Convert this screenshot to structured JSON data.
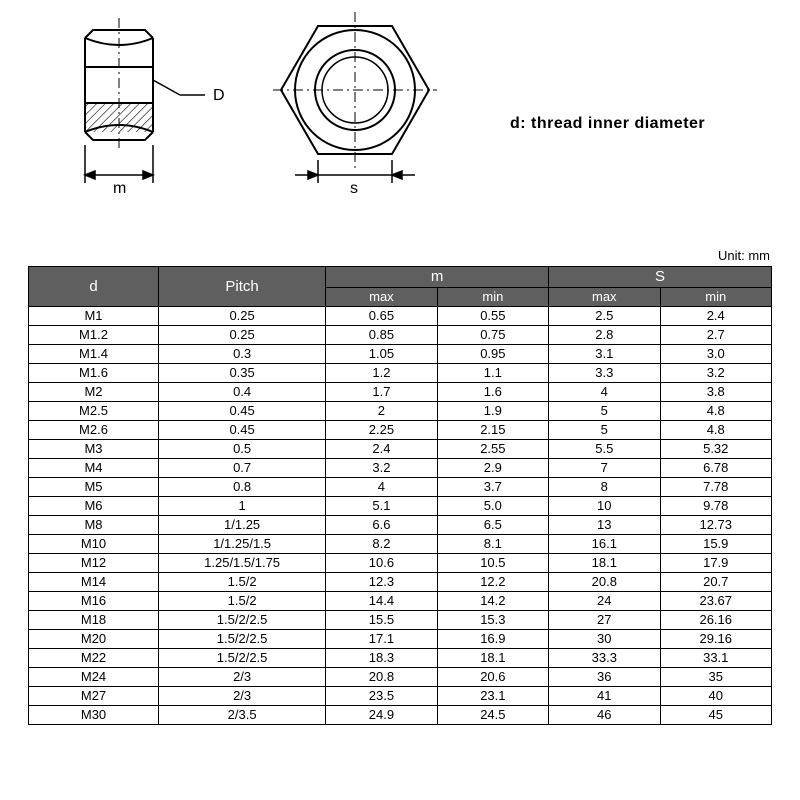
{
  "annotation": "d: thread inner diameter",
  "unit_label": "Unit: mm",
  "diagram": {
    "label_D": "D",
    "label_m": "m",
    "label_s": "s",
    "stroke": "#000000",
    "hatch": "#000000"
  },
  "table": {
    "header_bg": "#5f5f5f",
    "header_fg": "#ffffff",
    "border_color": "#000000",
    "columns_top": [
      "d",
      "Pitch",
      "m",
      "S"
    ],
    "columns_sub": [
      "max",
      "min",
      "max",
      "min"
    ],
    "rows": [
      [
        "M1",
        "0.25",
        "0.65",
        "0.55",
        "2.5",
        "2.4"
      ],
      [
        "M1.2",
        "0.25",
        "0.85",
        "0.75",
        "2.8",
        "2.7"
      ],
      [
        "M1.4",
        "0.3",
        "1.05",
        "0.95",
        "3.1",
        "3.0"
      ],
      [
        "M1.6",
        "0.35",
        "1.2",
        "1.1",
        "3.3",
        "3.2"
      ],
      [
        "M2",
        "0.4",
        "1.7",
        "1.6",
        "4",
        "3.8"
      ],
      [
        "M2.5",
        "0.45",
        "2",
        "1.9",
        "5",
        "4.8"
      ],
      [
        "M2.6",
        "0.45",
        "2.25",
        "2.15",
        "5",
        "4.8"
      ],
      [
        "M3",
        "0.5",
        "2.4",
        "2.55",
        "5.5",
        "5.32"
      ],
      [
        "M4",
        "0.7",
        "3.2",
        "2.9",
        "7",
        "6.78"
      ],
      [
        "M5",
        "0.8",
        "4",
        "3.7",
        "8",
        "7.78"
      ],
      [
        "M6",
        "1",
        "5.1",
        "5.0",
        "10",
        "9.78"
      ],
      [
        "M8",
        "1/1.25",
        "6.6",
        "6.5",
        "13",
        "12.73"
      ],
      [
        "M10",
        "1/1.25/1.5",
        "8.2",
        "8.1",
        "16.1",
        "15.9"
      ],
      [
        "M12",
        "1.25/1.5/1.75",
        "10.6",
        "10.5",
        "18.1",
        "17.9"
      ],
      [
        "M14",
        "1.5/2",
        "12.3",
        "12.2",
        "20.8",
        "20.7"
      ],
      [
        "M16",
        "1.5/2",
        "14.4",
        "14.2",
        "24",
        "23.67"
      ],
      [
        "M18",
        "1.5/2/2.5",
        "15.5",
        "15.3",
        "27",
        "26.16"
      ],
      [
        "M20",
        "1.5/2/2.5",
        "17.1",
        "16.9",
        "30",
        "29.16"
      ],
      [
        "M22",
        "1.5/2/2.5",
        "18.3",
        "18.1",
        "33.3",
        "33.1"
      ],
      [
        "M24",
        "2/3",
        "20.8",
        "20.6",
        "36",
        "35"
      ],
      [
        "M27",
        "2/3",
        "23.5",
        "23.1",
        "41",
        "40"
      ],
      [
        "M30",
        "2/3.5",
        "24.9",
        "24.5",
        "46",
        "45"
      ]
    ]
  }
}
